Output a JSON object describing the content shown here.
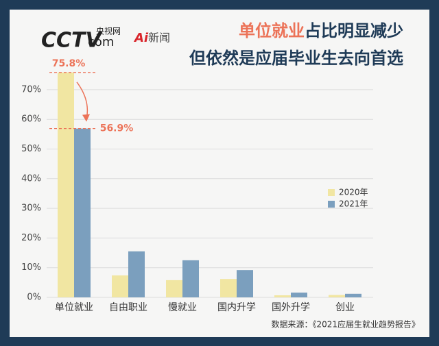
{
  "header": {
    "logo": [
      "CCTV",
      "com",
      "央视网",
      "Ai",
      "新闻"
    ]
  },
  "chart_data": {
    "type": "bar",
    "title_highlight": "单位就业",
    "title": "占比明显减少",
    "subtitle": "但依然是应届毕业生去向首选",
    "categories": [
      "单位就业",
      "自由职业",
      "慢就业",
      "国内升学",
      "国外升学",
      "创业"
    ],
    "series": [
      {
        "name": "2020年",
        "color": "#f1e6a2",
        "values": [
          75.8,
          7.4,
          5.8,
          6.2,
          0.7,
          0.8
        ],
        "value_labels": [
          "75.8%",
          null,
          null,
          null,
          null,
          null
        ]
      },
      {
        "name": "2021年",
        "color": "#7b9fbe",
        "values": [
          56.9,
          15.5,
          12.5,
          9.2,
          1.6,
          1.2
        ],
        "value_labels": [
          "56.9%",
          null,
          null,
          null,
          null,
          null
        ]
      }
    ],
    "ylim": [
      0,
      80
    ],
    "yticks": [
      {
        "value": 0,
        "label": "0%"
      },
      {
        "value": 10,
        "label": "10%"
      },
      {
        "value": 20,
        "label": "20%"
      },
      {
        "value": 30,
        "label": "30%"
      },
      {
        "value": 40,
        "label": "40%"
      },
      {
        "value": 50,
        "label": "50%"
      },
      {
        "value": 60,
        "label": "60%"
      },
      {
        "value": 70,
        "label": "70%"
      }
    ],
    "grid": true,
    "legend": "right",
    "source": "数据来源：《2021应届生就业趋势报告》"
  }
}
